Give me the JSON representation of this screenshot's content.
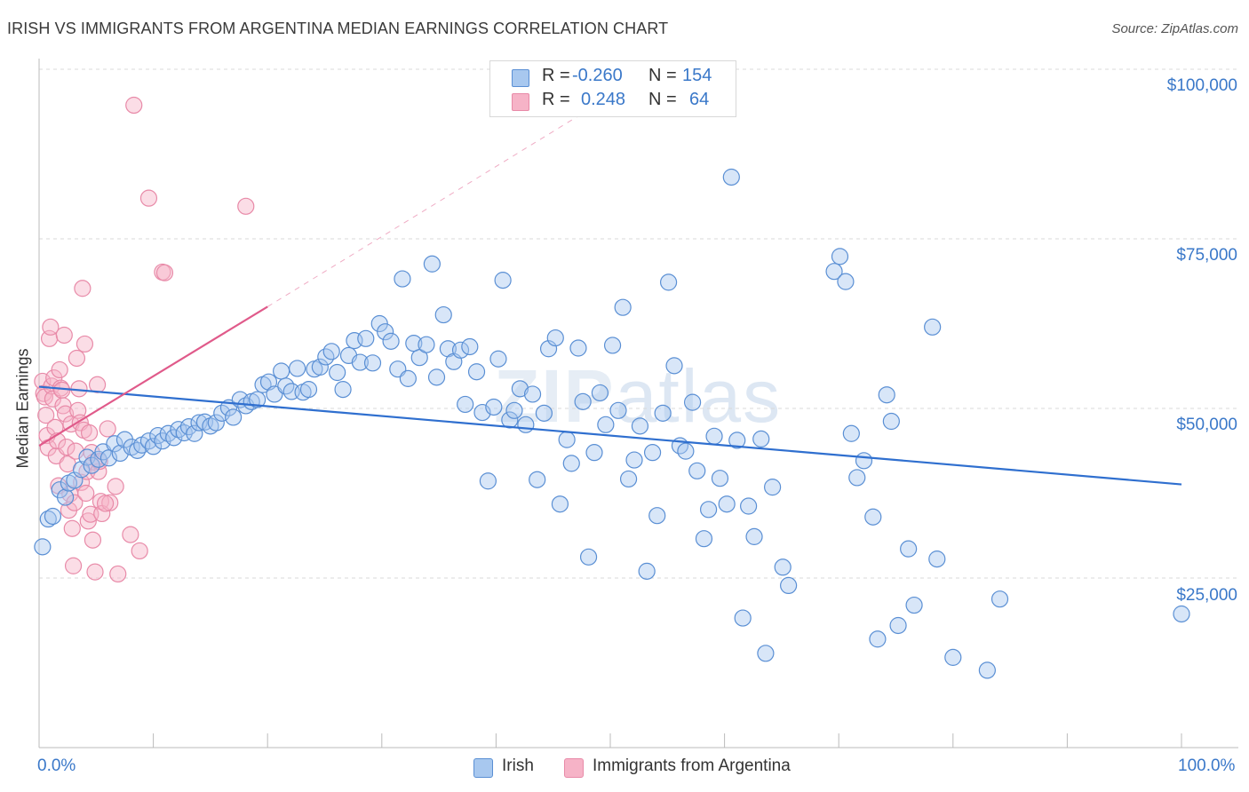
{
  "header": {
    "title": "IRISH VS IMMIGRANTS FROM ARGENTINA MEDIAN EARNINGS CORRELATION CHART",
    "source": "Source: ZipAtlas.com"
  },
  "watermark": {
    "bold": "ZIP",
    "light": "atlas"
  },
  "legend_top": [
    {
      "r_label": "R =",
      "r_value": "-0.260",
      "n_label": "N =",
      "n_value": "154",
      "color": "#a8c8ef"
    },
    {
      "r_label": "R =",
      "r_value": "0.248",
      "n_label": "N =",
      "n_value": "64",
      "color": "#f6b3c7"
    }
  ],
  "legend_bottom": [
    {
      "name": "Irish",
      "color": "#a8c8ef"
    },
    {
      "name": "Immigrants from Argentina",
      "color": "#f6b3c7"
    }
  ],
  "colors": {
    "irish_fill": "#a8c8ef",
    "irish_stroke": "#5a8fd4",
    "irish_line": "#2f6fcf",
    "arg_fill": "#f6b3c7",
    "arg_stroke": "#e88aa8",
    "arg_line": "#e05a8a",
    "axis_text": "#3a78c9",
    "grid": "#d9d9d9"
  },
  "chart_data": {
    "type": "scatter",
    "title": "IRISH VS IMMIGRANTS FROM ARGENTINA MEDIAN EARNINGS CORRELATION CHART",
    "xlabel": "",
    "ylabel": "Median Earnings",
    "xlim": [
      0,
      100
    ],
    "ylim": [
      0,
      105000
    ],
    "x_tick_labels": [
      "0.0%",
      "100.0%"
    ],
    "y_ticks": [
      25000,
      50000,
      75000,
      100000
    ],
    "y_tick_labels": [
      "$25,000",
      "$50,000",
      "$75,000",
      "$100,000"
    ],
    "grid": true,
    "legend_placement": "top-center",
    "series": [
      {
        "name": "Irish",
        "trend": {
          "x": [
            0,
            100
          ],
          "y": [
            53200,
            38800
          ]
        },
        "points": [
          [
            0.3,
            29600
          ],
          [
            0.8,
            33700
          ],
          [
            1.2,
            34100
          ],
          [
            1.8,
            38000
          ],
          [
            2.3,
            36900
          ],
          [
            2.6,
            39000
          ],
          [
            3.1,
            39400
          ],
          [
            3.7,
            41000
          ],
          [
            4.2,
            42800
          ],
          [
            4.6,
            41600
          ],
          [
            5.2,
            42500
          ],
          [
            5.6,
            43600
          ],
          [
            6.1,
            42700
          ],
          [
            6.6,
            44800
          ],
          [
            7.1,
            43400
          ],
          [
            7.5,
            45400
          ],
          [
            8.1,
            44300
          ],
          [
            8.6,
            43800
          ],
          [
            9.0,
            44600
          ],
          [
            9.6,
            45200
          ],
          [
            10.0,
            44400
          ],
          [
            10.4,
            46000
          ],
          [
            10.8,
            45200
          ],
          [
            11.3,
            46300
          ],
          [
            11.8,
            45700
          ],
          [
            12.2,
            46900
          ],
          [
            12.7,
            46400
          ],
          [
            13.1,
            47300
          ],
          [
            13.6,
            46300
          ],
          [
            14.0,
            47900
          ],
          [
            14.5,
            48000
          ],
          [
            15.0,
            47400
          ],
          [
            15.5,
            47900
          ],
          [
            16.0,
            49300
          ],
          [
            16.6,
            50100
          ],
          [
            17.0,
            48700
          ],
          [
            17.6,
            51300
          ],
          [
            18.1,
            50400
          ],
          [
            18.6,
            51000
          ],
          [
            19.1,
            51300
          ],
          [
            19.6,
            53500
          ],
          [
            20.1,
            53900
          ],
          [
            20.6,
            52100
          ],
          [
            21.2,
            55500
          ],
          [
            21.6,
            53300
          ],
          [
            22.1,
            52500
          ],
          [
            22.6,
            55900
          ],
          [
            23.1,
            52400
          ],
          [
            23.6,
            52800
          ],
          [
            24.1,
            55800
          ],
          [
            24.6,
            56100
          ],
          [
            25.1,
            57600
          ],
          [
            25.6,
            58400
          ],
          [
            26.1,
            55300
          ],
          [
            26.6,
            52800
          ],
          [
            27.1,
            57800
          ],
          [
            27.6,
            60000
          ],
          [
            28.1,
            56800
          ],
          [
            28.6,
            60300
          ],
          [
            29.2,
            56700
          ],
          [
            29.8,
            62500
          ],
          [
            30.3,
            61300
          ],
          [
            30.8,
            59900
          ],
          [
            31.4,
            55800
          ],
          [
            31.8,
            69100
          ],
          [
            32.3,
            54400
          ],
          [
            32.8,
            59600
          ],
          [
            33.3,
            57500
          ],
          [
            33.9,
            59400
          ],
          [
            34.4,
            71300
          ],
          [
            34.8,
            54600
          ],
          [
            35.4,
            63800
          ],
          [
            35.8,
            58800
          ],
          [
            36.3,
            56900
          ],
          [
            36.9,
            58600
          ],
          [
            37.3,
            50600
          ],
          [
            37.7,
            59100
          ],
          [
            38.3,
            55400
          ],
          [
            38.8,
            49400
          ],
          [
            39.3,
            39300
          ],
          [
            39.8,
            50200
          ],
          [
            40.2,
            57300
          ],
          [
            40.6,
            68900
          ],
          [
            41.2,
            48300
          ],
          [
            41.6,
            49700
          ],
          [
            42.1,
            52900
          ],
          [
            42.6,
            47600
          ],
          [
            43.2,
            52100
          ],
          [
            43.6,
            39500
          ],
          [
            44.2,
            49300
          ],
          [
            44.6,
            58800
          ],
          [
            45.2,
            60400
          ],
          [
            45.6,
            35900
          ],
          [
            46.2,
            45400
          ],
          [
            46.6,
            41900
          ],
          [
            47.2,
            58900
          ],
          [
            47.6,
            51000
          ],
          [
            48.1,
            28100
          ],
          [
            48.6,
            43500
          ],
          [
            49.1,
            52300
          ],
          [
            49.6,
            47600
          ],
          [
            50.2,
            59300
          ],
          [
            50.7,
            49700
          ],
          [
            51.1,
            64900
          ],
          [
            51.6,
            39600
          ],
          [
            52.1,
            42400
          ],
          [
            52.6,
            47400
          ],
          [
            53.2,
            26000
          ],
          [
            53.7,
            43500
          ],
          [
            54.1,
            34200
          ],
          [
            54.6,
            49300
          ],
          [
            55.1,
            68600
          ],
          [
            55.6,
            56300
          ],
          [
            56.1,
            44500
          ],
          [
            56.6,
            43700
          ],
          [
            57.2,
            50900
          ],
          [
            57.6,
            40800
          ],
          [
            58.2,
            30800
          ],
          [
            58.6,
            35100
          ],
          [
            59.1,
            45900
          ],
          [
            59.6,
            39700
          ],
          [
            60.2,
            35900
          ],
          [
            60.6,
            84100
          ],
          [
            61.1,
            45300
          ],
          [
            61.6,
            19100
          ],
          [
            62.1,
            35600
          ],
          [
            62.6,
            31100
          ],
          [
            63.2,
            45500
          ],
          [
            63.6,
            13900
          ],
          [
            64.2,
            38400
          ],
          [
            65.1,
            26600
          ],
          [
            65.6,
            23900
          ],
          [
            69.6,
            70200
          ],
          [
            70.1,
            72400
          ],
          [
            70.6,
            68700
          ],
          [
            71.1,
            46300
          ],
          [
            71.6,
            39800
          ],
          [
            72.2,
            42300
          ],
          [
            73.0,
            34000
          ],
          [
            73.4,
            16000
          ],
          [
            74.2,
            52000
          ],
          [
            74.6,
            48100
          ],
          [
            75.2,
            18000
          ],
          [
            76.1,
            29300
          ],
          [
            76.6,
            21000
          ],
          [
            78.6,
            27800
          ],
          [
            78.2,
            62000
          ],
          [
            80.0,
            13300
          ],
          [
            83.0,
            11400
          ],
          [
            84.1,
            21900
          ],
          [
            100.0,
            19700
          ]
        ]
      },
      {
        "name": "Immigrants from Argentina",
        "trend": {
          "x": [
            0,
            20
          ],
          "y": [
            44500,
            65000
          ]
        },
        "trend_extended": {
          "x": [
            20,
            50
          ],
          "y": [
            65000,
            96000
          ]
        },
        "points": [
          [
            0.3,
            54000
          ],
          [
            0.4,
            52200
          ],
          [
            0.5,
            51700
          ],
          [
            0.6,
            49000
          ],
          [
            0.7,
            46000
          ],
          [
            0.8,
            44200
          ],
          [
            0.9,
            60300
          ],
          [
            1.0,
            62000
          ],
          [
            1.1,
            53300
          ],
          [
            1.2,
            51400
          ],
          [
            1.3,
            54500
          ],
          [
            1.4,
            47200
          ],
          [
            1.5,
            43000
          ],
          [
            1.6,
            45200
          ],
          [
            1.7,
            38600
          ],
          [
            1.8,
            55700
          ],
          [
            1.9,
            53000
          ],
          [
            2.0,
            52700
          ],
          [
            2.1,
            50400
          ],
          [
            2.2,
            60800
          ],
          [
            2.3,
            49200
          ],
          [
            2.4,
            44300
          ],
          [
            2.5,
            41800
          ],
          [
            2.6,
            35000
          ],
          [
            2.7,
            37400
          ],
          [
            2.8,
            47700
          ],
          [
            2.9,
            32300
          ],
          [
            3.0,
            26800
          ],
          [
            3.1,
            36100
          ],
          [
            3.2,
            43700
          ],
          [
            3.3,
            57400
          ],
          [
            3.4,
            49700
          ],
          [
            3.5,
            52900
          ],
          [
            3.6,
            47900
          ],
          [
            3.7,
            39100
          ],
          [
            3.8,
            67700
          ],
          [
            3.9,
            46800
          ],
          [
            4.0,
            59500
          ],
          [
            4.1,
            37500
          ],
          [
            4.2,
            40700
          ],
          [
            4.3,
            33400
          ],
          [
            4.4,
            46400
          ],
          [
            4.5,
            34400
          ],
          [
            4.6,
            43500
          ],
          [
            4.7,
            30600
          ],
          [
            4.8,
            42100
          ],
          [
            4.9,
            25900
          ],
          [
            5.1,
            53500
          ],
          [
            5.2,
            40700
          ],
          [
            5.3,
            42200
          ],
          [
            5.4,
            36300
          ],
          [
            5.5,
            34500
          ],
          [
            6.0,
            47000
          ],
          [
            6.2,
            36100
          ],
          [
            6.7,
            38500
          ],
          [
            6.9,
            25600
          ],
          [
            8.0,
            31400
          ],
          [
            8.3,
            94700
          ],
          [
            8.8,
            29000
          ],
          [
            9.6,
            81000
          ],
          [
            10.8,
            70100
          ],
          [
            11.0,
            70000
          ],
          [
            18.1,
            79800
          ],
          [
            5.8,
            36000
          ]
        ]
      }
    ]
  }
}
